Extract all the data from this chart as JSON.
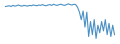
{
  "values": [
    2.0,
    2.1,
    2.2,
    2.0,
    2.3,
    2.1,
    2.2,
    2.4,
    2.2,
    2.1,
    2.3,
    2.2,
    2.1,
    2.3,
    2.2,
    2.4,
    2.3,
    2.2,
    2.4,
    2.3,
    2.5,
    2.3,
    2.2,
    2.4,
    2.5,
    2.3,
    2.6,
    2.4,
    2.3,
    2.5,
    2.6,
    2.4,
    2.3,
    2.5,
    2.7,
    2.5,
    2.4,
    2.6,
    2.5,
    1.8,
    0.5,
    -1.5,
    0.8,
    -3.5,
    0.5,
    -6.0,
    -2.0,
    -5.5,
    -1.5,
    -6.5,
    -3.0,
    -5.0,
    -2.0,
    -4.5,
    -1.5,
    -5.5,
    -2.5,
    -6.0,
    -3.0,
    -5.5
  ],
  "line_color": "#4a90c4",
  "background_color": "#ffffff",
  "ylim": [
    -8.0,
    4.0
  ],
  "linewidth": 0.8
}
